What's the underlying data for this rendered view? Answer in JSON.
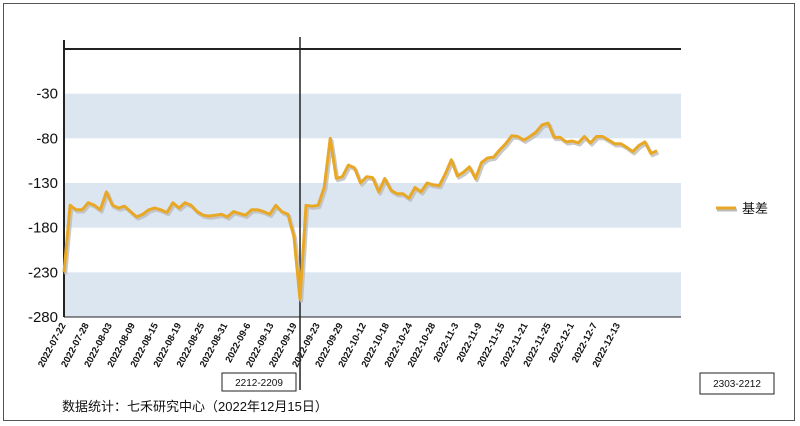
{
  "chart_data": {
    "type": "line",
    "title": "",
    "xlabel": "",
    "ylabel": "",
    "ylim": [
      -280,
      20
    ],
    "yticks": [
      -30,
      -80,
      -130,
      -180,
      -230,
      -280
    ],
    "x_tick_labels": [
      "2022-07-22",
      "2022-07-28",
      "2022-08-03",
      "2022-08-09",
      "2022-08-15",
      "2022-08-19",
      "2022-08-25",
      "2022-08-31",
      "2022-09-6",
      "2022-09-13",
      "2022-09-19",
      "2022-09-23",
      "2022-09-29",
      "2022-10-12",
      "2022-10-18",
      "2022-10-24",
      "2022-10-28",
      "2022-11-3",
      "2022-11-9",
      "2022-11-15",
      "2022-11-21",
      "2022-11-25",
      "2022-12-1",
      "2022-12-7",
      "2022-12-13"
    ],
    "grid_bands": true,
    "legend_position": "right",
    "series": [
      {
        "name": "基差",
        "color": "#E8A825",
        "values": [
          -230,
          -155,
          -160,
          -160,
          -152,
          -155,
          -160,
          -140,
          -155,
          -158,
          -156,
          -162,
          -168,
          -165,
          -160,
          -158,
          -160,
          -163,
          -152,
          -158,
          -152,
          -155,
          -162,
          -166,
          -167,
          -166,
          -165,
          -168,
          -162,
          -164,
          -166,
          -160,
          -160,
          -162,
          -165,
          -155,
          -162,
          -165,
          -190,
          -260,
          -155,
          -156,
          -155,
          -135,
          -80,
          -125,
          -123,
          -110,
          -113,
          -130,
          -123,
          -124,
          -140,
          -125,
          -138,
          -142,
          -142,
          -147,
          -135,
          -140,
          -130,
          -132,
          -133,
          -120,
          -104,
          -122,
          -118,
          -112,
          -125,
          -107,
          -102,
          -101,
          -93,
          -86,
          -77,
          -78,
          -82,
          -78,
          -73,
          -65,
          -63,
          -79,
          -79,
          -84,
          -83,
          -85,
          -78,
          -85,
          -78,
          -78,
          -82,
          -86,
          -86,
          -90,
          -95,
          -88,
          -84,
          -97,
          -94
        ]
      }
    ],
    "annotations": {
      "roll_marker_label": "2212-2209",
      "roll_marker_x": "2022-09-19",
      "contract_label": "2303-2212"
    },
    "source_note": "数据统计：七禾研究中心（2022年12月15日）"
  }
}
